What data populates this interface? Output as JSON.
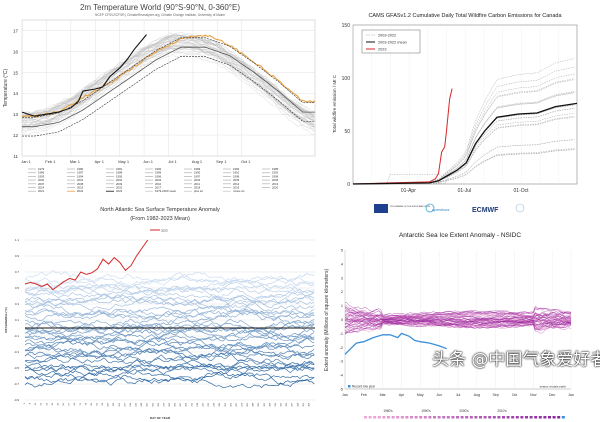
{
  "watermark": "头条 @中国气象爱好者",
  "chart_data": [
    {
      "type": "line",
      "title": "2m Temperature World (90°S-90°N, 0-360°E)",
      "subtitle": "NCEP CFSV2/CFSR | ClimateReanalyzer.org, Climate Change Institute, University of Maine",
      "ylabel": "Temperature (°C)",
      "ylim": [
        11,
        17.5
      ],
      "yticks": [
        11,
        12,
        13,
        14,
        15,
        16,
        17
      ],
      "xtick_labels": [
        "Jan 1",
        "Feb 1",
        "Mar 1",
        "Apr 1",
        "May 1",
        "Jun 1",
        "Jul 1",
        "Aug 1",
        "Sep 1",
        "Oct 1"
      ],
      "grid": true,
      "legend_position": "bottom",
      "legend": [
        "1979",
        "1980",
        "1981",
        "1982",
        "1983",
        "1984",
        "1985",
        "1986",
        "1987",
        "1988",
        "1989",
        "1990",
        "1991",
        "1992",
        "1993",
        "1994",
        "1995",
        "1996",
        "1997",
        "1998",
        "1999",
        "2000",
        "2001",
        "2002",
        "2003",
        "2004",
        "2005",
        "2006",
        "2007",
        "2008",
        "2009",
        "2010",
        "2011",
        "2012",
        "2013",
        "2014",
        "2015",
        "2016",
        "2017",
        "2018",
        "2019",
        "2020",
        "2021",
        "2022",
        "2023",
        "1979-2000 mean",
        "plus 2σ",
        "minus 2σ"
      ],
      "x_months": [
        1,
        2,
        3,
        4,
        5,
        6,
        7,
        8,
        9,
        10,
        11,
        12
      ],
      "series": [
        {
          "name": "2022",
          "color": "#e8a040",
          "values": [
            12.9,
            13.1,
            13.8,
            14.4,
            15.2,
            16.0,
            16.6,
            16.8,
            16.3,
            15.5,
            14.6,
            13.6
          ]
        },
        {
          "name": "2023",
          "color": "#111111",
          "x": [
            1,
            1.5,
            2,
            2.5,
            3,
            3.3,
            3.5,
            4,
            4.3,
            4.6,
            5,
            5.3,
            5.6,
            6.1
          ],
          "values": [
            13.1,
            12.9,
            13.0,
            13.1,
            13.3,
            13.6,
            14.1,
            14.2,
            14.3,
            14.8,
            15.2,
            15.6,
            16.1,
            16.8
          ]
        },
        {
          "name": "1979-2000 mean",
          "color": "#555555",
          "values": [
            12.4,
            12.6,
            13.2,
            14.0,
            14.8,
            15.6,
            16.2,
            16.2,
            15.8,
            15.0,
            14.1,
            13.1
          ]
        },
        {
          "name": "plus 2σ",
          "color": "#333333",
          "values": [
            12.85,
            13.05,
            13.65,
            14.45,
            15.25,
            16.05,
            16.65,
            16.65,
            16.25,
            15.45,
            14.55,
            13.55
          ]
        },
        {
          "name": "minus 2σ",
          "color": "#333333",
          "values": [
            11.95,
            12.15,
            12.75,
            13.55,
            14.35,
            15.15,
            15.75,
            15.75,
            15.35,
            14.55,
            13.65,
            12.65
          ]
        }
      ]
    },
    {
      "type": "line",
      "title": "CAMS GFASv1.2 Cumulative Daily Total Wildfire Carbon Emissions for Canada",
      "ylabel": "Total wildfire emission / Mt C",
      "ylim": [
        0,
        150
      ],
      "yticks": [
        0,
        50,
        100,
        150
      ],
      "xtick_labels": [
        "01-Apr",
        "01-Jul",
        "01-Oct"
      ],
      "xtick_days": [
        91,
        182,
        274
      ],
      "legend_position": "top-left",
      "legend": [
        "2003-2022",
        "2003-2022 mean",
        "2023"
      ],
      "series": [
        {
          "name": "2023",
          "color": "#d62728",
          "days": [
            1,
            60,
            125,
            135,
            140,
            145,
            150,
            153,
            158,
            162
          ],
          "values": [
            0,
            1,
            2,
            5,
            10,
            30,
            35,
            50,
            80,
            90
          ]
        },
        {
          "name": "2003-2022 mean",
          "color": "#111111",
          "days": [
            1,
            125,
            140,
            155,
            170,
            185,
            200,
            215,
            235,
            270,
            300,
            330,
            365
          ],
          "values": [
            0,
            1,
            3,
            8,
            13,
            20,
            38,
            50,
            63,
            66,
            67,
            73,
            76
          ]
        }
      ],
      "logos": [
        "PROGRAMME OF THE EUROPEAN UNION",
        "opernicus",
        "ECMWF"
      ]
    },
    {
      "type": "line",
      "title": "North Atlantic Sea Surface Temperature Anomaly",
      "subtitle": "(From 1982-2023 Mean)",
      "xlabel": "DAY OF YEAR",
      "ylabel": "DIFFERENCE (°C)",
      "ylim": [
        -0.9,
        1.1
      ],
      "yticks": [
        "-0.9",
        "-0.7",
        "-0.5",
        "-0.3",
        "-0.1",
        "0.1",
        "0.3",
        "0.5",
        "0.7",
        "0.9",
        "1.1"
      ],
      "legend_position": "top",
      "legend": [
        "2023"
      ],
      "xtick_labels": [
        "1",
        "8",
        "15",
        "22",
        "29",
        "36",
        "43",
        "50",
        "57",
        "64",
        "71",
        "78",
        "85",
        "92",
        "99",
        "106",
        "113",
        "120",
        "127",
        "134",
        "141",
        "148",
        "155",
        "162",
        "169",
        "176",
        "183",
        "190",
        "197",
        "204",
        "211",
        "218",
        "225",
        "232",
        "239",
        "246",
        "253",
        "260",
        "267",
        "274",
        "281",
        "288",
        "295",
        "302",
        "309",
        "316",
        "323",
        "330",
        "337",
        "344",
        "351",
        "358"
      ],
      "series": [
        {
          "name": "2023",
          "color": "#d62728",
          "days": [
            1,
            8,
            15,
            22,
            29,
            36,
            43,
            50,
            57,
            64,
            71,
            78,
            85,
            92,
            99,
            106,
            113,
            120,
            127,
            134,
            141,
            148,
            155
          ],
          "values": [
            0.55,
            0.57,
            0.55,
            0.52,
            0.55,
            0.48,
            0.53,
            0.58,
            0.62,
            0.6,
            0.7,
            0.67,
            0.69,
            0.74,
            0.86,
            0.8,
            0.88,
            0.82,
            0.72,
            0.78,
            0.9,
            1.0,
            1.1
          ]
        }
      ]
    },
    {
      "type": "line",
      "title": "Antarctic Sea Ice Extent Anomaly - NSIDC",
      "ylabel": "Extent anomaly (Millions of square kilometers)",
      "ylim": [
        -5,
        5
      ],
      "yticks": [
        -5,
        -4,
        -3,
        -2,
        -1,
        0,
        1,
        2,
        3,
        4,
        5
      ],
      "xtick_labels": [
        "Jan",
        "Feb",
        "Mar",
        "Apr",
        "May",
        "Jun",
        "Jul",
        "Aug",
        "Sep",
        "Oct",
        "Nov",
        "Dec",
        "Jan"
      ],
      "legend": [
        "Record low year"
      ],
      "credit": "seaice.visuals.earth",
      "decade_labels": [
        "1980's",
        "1990's",
        "2000's",
        "2010's"
      ],
      "series": [
        {
          "name": "Record low year",
          "color": "#3a8fd8",
          "months": [
            0,
            0.3,
            0.6,
            1,
            1.5,
            2,
            2.4,
            2.8,
            3,
            3.4,
            3.7,
            4,
            4.5,
            5,
            5.4
          ],
          "values": [
            -2.5,
            -2.1,
            -1.7,
            -1.6,
            -1.3,
            -1.1,
            -1.1,
            -1.3,
            -1.0,
            -1.2,
            -1.5,
            -1.6,
            -1.7,
            -1.9,
            -2.1
          ]
        }
      ]
    }
  ]
}
